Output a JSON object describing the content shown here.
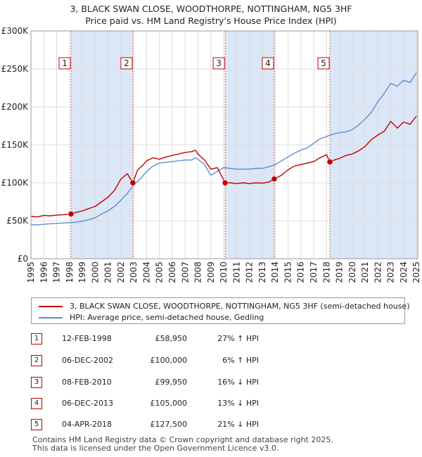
{
  "chart_data": {
    "type": "line",
    "title": "3, BLACK SWAN CLOSE, WOODTHORPE, NOTTINGHAM, NG5 3HF",
    "subtitle": "Price paid vs. HM Land Registry's House Price Index (HPI)",
    "xlabel": "",
    "ylabel": "",
    "xlim": [
      1995,
      2025.1
    ],
    "ylim": [
      0,
      300000
    ],
    "y_ticks": [
      0,
      50000,
      100000,
      150000,
      200000,
      250000,
      300000
    ],
    "y_tick_labels": [
      "£0",
      "£50K",
      "£100K",
      "£150K",
      "£200K",
      "£250K",
      "£300K"
    ],
    "x_ticks": [
      1995,
      1996,
      1997,
      1998,
      1999,
      2000,
      2001,
      2002,
      2003,
      2004,
      2005,
      2006,
      2007,
      2008,
      2009,
      2010,
      2011,
      2012,
      2013,
      2014,
      2015,
      2016,
      2017,
      2018,
      2019,
      2020,
      2021,
      2022,
      2023,
      2024,
      2025
    ],
    "x_tick_labels": [
      "1995",
      "1996",
      "1997",
      "1998",
      "1999",
      "2000",
      "2001",
      "2002",
      "2003",
      "2004",
      "2005",
      "2006",
      "2007",
      "2008",
      "2009",
      "2010",
      "2011",
      "2012",
      "2013",
      "2014",
      "2015",
      "2016",
      "2017",
      "2018",
      "2019",
      "2020",
      "2021",
      "2022",
      "2023",
      "2024",
      "2025"
    ],
    "grid": true,
    "series": [
      {
        "name": "3, BLACK SWAN CLOSE, WOODTHORPE, NOTTINGHAM, NG5 3HF (semi-detached house)",
        "color": "#c00000",
        "x": [
          1995.0,
          1995.5,
          1996.0,
          1996.5,
          1997.0,
          1997.5,
          1998.12,
          1998.5,
          1999.0,
          1999.5,
          2000.0,
          2000.5,
          2001.0,
          2001.5,
          2002.0,
          2002.5,
          2002.93,
          2003.3,
          2003.7,
          2004.0,
          2004.5,
          2005.0,
          2005.5,
          2006.0,
          2006.5,
          2007.0,
          2007.5,
          2007.8,
          2008.0,
          2008.5,
          2009.0,
          2009.5,
          2010.11,
          2010.5,
          2011.0,
          2011.5,
          2012.0,
          2012.5,
          2013.0,
          2013.5,
          2013.93,
          2014.5,
          2015.0,
          2015.5,
          2016.0,
          2016.5,
          2017.0,
          2017.5,
          2018.0,
          2018.26,
          2018.6,
          2019.0,
          2019.5,
          2020.0,
          2020.5,
          2021.0,
          2021.5,
          2022.0,
          2022.5,
          2023.0,
          2023.5,
          2024.0,
          2024.5,
          2025.0
        ],
        "values": [
          56000,
          55000,
          57000,
          56500,
          57500,
          58000,
          58950,
          61000,
          63000,
          66000,
          69000,
          75000,
          81000,
          90000,
          105000,
          112000,
          100000,
          117000,
          123000,
          129000,
          133000,
          131000,
          134000,
          136000,
          138000,
          140000,
          141000,
          143000,
          138000,
          130000,
          118000,
          120000,
          99950,
          100000,
          99000,
          100000,
          99000,
          100000,
          99500,
          101000,
          105000,
          110000,
          117000,
          122000,
          124000,
          126000,
          128000,
          133000,
          137000,
          127500,
          130000,
          132000,
          136000,
          138000,
          142000,
          148000,
          157000,
          163000,
          168000,
          181000,
          172000,
          180000,
          177000,
          188000
        ]
      },
      {
        "name": "HPI: Average price, semi-detached house, Gedling",
        "color": "#5b8fd0",
        "x": [
          1995.0,
          1995.5,
          1996.0,
          1996.5,
          1997.0,
          1997.5,
          1998.0,
          1998.5,
          1999.0,
          1999.5,
          2000.0,
          2000.5,
          2001.0,
          2001.5,
          2002.0,
          2002.5,
          2003.0,
          2003.5,
          2004.0,
          2004.5,
          2005.0,
          2005.5,
          2006.0,
          2006.5,
          2007.0,
          2007.5,
          2007.8,
          2008.0,
          2008.5,
          2009.0,
          2009.5,
          2010.0,
          2010.5,
          2011.0,
          2011.5,
          2012.0,
          2012.5,
          2013.0,
          2013.5,
          2014.0,
          2014.5,
          2015.0,
          2015.5,
          2016.0,
          2016.5,
          2017.0,
          2017.5,
          2018.0,
          2018.5,
          2019.0,
          2019.5,
          2020.0,
          2020.5,
          2021.0,
          2021.5,
          2022.0,
          2022.5,
          2023.0,
          2023.5,
          2024.0,
          2024.5,
          2025.0
        ],
        "values": [
          45000,
          44500,
          45500,
          46000,
          46500,
          47000,
          47500,
          48000,
          49500,
          51500,
          54000,
          59000,
          63000,
          69000,
          77000,
          86000,
          97000,
          105000,
          115000,
          122000,
          126000,
          127000,
          128000,
          129000,
          130000,
          130000,
          133000,
          131000,
          124000,
          110000,
          115000,
          120000,
          119000,
          118000,
          118000,
          118000,
          119000,
          119000,
          121000,
          124000,
          129000,
          134000,
          139000,
          143000,
          146000,
          152000,
          158000,
          161000,
          164000,
          166000,
          167000,
          170000,
          176000,
          184000,
          193000,
          207000,
          218000,
          231000,
          227000,
          235000,
          232000,
          245000
        ]
      }
    ],
    "sales": [
      {
        "label": "1",
        "x": 1998.12,
        "value": 58950
      },
      {
        "label": "2",
        "x": 2002.93,
        "value": 100000
      },
      {
        "label": "3",
        "x": 2010.11,
        "value": 99950
      },
      {
        "label": "4",
        "x": 2013.93,
        "value": 105000
      },
      {
        "label": "5",
        "x": 2018.26,
        "value": 127500
      }
    ],
    "legend_position": "bottom"
  },
  "legend": {
    "items": [
      {
        "label": "3, BLACK SWAN CLOSE, WOODTHORPE, NOTTINGHAM, NG5 3HF (semi-detached house)",
        "color": "#c00000"
      },
      {
        "label": "HPI: Average price, semi-detached house, Gedling",
        "color": "#5b8fd0"
      }
    ]
  },
  "table": {
    "rows": [
      {
        "num": "1",
        "date": "12-FEB-1998",
        "price": "£58,950",
        "pct": "27% ↑ HPI"
      },
      {
        "num": "2",
        "date": "06-DEC-2002",
        "price": "£100,000",
        "pct": "6% ↑ HPI"
      },
      {
        "num": "3",
        "date": "08-FEB-2010",
        "price": "£99,950",
        "pct": "16% ↓ HPI"
      },
      {
        "num": "4",
        "date": "06-DEC-2013",
        "price": "£105,000",
        "pct": "13% ↓ HPI"
      },
      {
        "num": "5",
        "date": "04-APR-2018",
        "price": "£127,500",
        "pct": "21% ↓ HPI"
      }
    ]
  },
  "footer": {
    "line1": "Contains HM Land Registry data © Crown copyright and database right 2025.",
    "line2": "This data is licensed under the Open Government Licence v3.0."
  },
  "colors": {
    "band": "#dbe6f6",
    "sale_line": "#e06060",
    "grid": "#dcdcdc"
  }
}
